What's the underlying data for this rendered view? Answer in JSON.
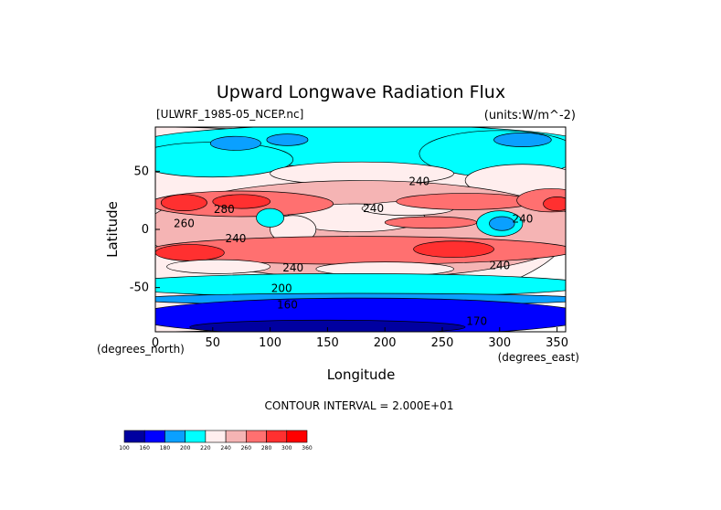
{
  "chart_data": {
    "type": "heatmap",
    "title": "Upward Longwave Radiation Flux",
    "file_label": "[ULWRF_1985-05_NCEP.nc]",
    "units_label": "(units:W/m^-2)",
    "xlabel": "Longitude",
    "ylabel": "Latitude",
    "x_unit_label": "(degrees_east)",
    "y_unit_label": "(degrees_north)",
    "xlim": [
      0,
      357.5
    ],
    "ylim": [
      -88,
      88
    ],
    "x_ticks": [
      "0",
      "50",
      "100",
      "150",
      "200",
      "250",
      "300",
      "350"
    ],
    "x_tick_values": [
      0,
      50,
      100,
      150,
      200,
      250,
      300,
      350
    ],
    "y_ticks": [
      "50",
      "0",
      "-50"
    ],
    "y_tick_values": [
      50,
      0,
      -50
    ],
    "contour_interval_text": "CONTOUR INTERVAL = 2.000E+01",
    "contour_labels": [
      {
        "text": "240",
        "lon": 230,
        "lat": 38
      },
      {
        "text": "240",
        "lon": 190,
        "lat": 15
      },
      {
        "text": "240",
        "lon": 70,
        "lat": -11
      },
      {
        "text": "240",
        "lon": 120,
        "lat": -36
      },
      {
        "text": "240",
        "lon": 300,
        "lat": -34
      },
      {
        "text": "240",
        "lon": 320,
        "lat": 6
      },
      {
        "text": "200",
        "lon": 110,
        "lat": -54
      },
      {
        "text": "160",
        "lon": 115,
        "lat": -68
      },
      {
        "text": "280",
        "lon": 60,
        "lat": 14
      },
      {
        "text": "260",
        "lon": 25,
        "lat": 2
      },
      {
        "text": "170",
        "lon": 280,
        "lat": -82
      }
    ],
    "colorbar": {
      "levels": [
        "100",
        "160",
        "180",
        "200",
        "220",
        "240",
        "260",
        "280",
        "300",
        "360"
      ],
      "colors": [
        "#0000a0",
        "#0000ff",
        "#0aa0ff",
        "#00ffff",
        "#ffeeee",
        "#f5b4b4",
        "#ff7070",
        "#ff3030",
        "#ff0000"
      ]
    },
    "regions": [
      {
        "value": 230,
        "lon": 0,
        "lat": 0,
        "lon_r": 360,
        "lat_r": 88
      },
      {
        "value": 210,
        "lon": 180,
        "lat": 72,
        "lon_r": 200,
        "lat_r": 18
      },
      {
        "value": 210,
        "lon": 50,
        "lat": 60,
        "lon_r": 70,
        "lat_r": 15
      },
      {
        "value": 210,
        "lon": 300,
        "lat": 65,
        "lon_r": 70,
        "lat_r": 20
      },
      {
        "value": 190,
        "lon": 70,
        "lat": 74,
        "lon_r": 22,
        "lat_r": 6
      },
      {
        "value": 190,
        "lon": 115,
        "lat": 77,
        "lon_r": 18,
        "lat_r": 5
      },
      {
        "value": 190,
        "lon": 320,
        "lat": 77,
        "lon_r": 25,
        "lat_r": 6
      },
      {
        "value": 230,
        "lon": 180,
        "lat": 48,
        "lon_r": 80,
        "lat_r": 10
      },
      {
        "value": 230,
        "lon": 320,
        "lat": 42,
        "lon_r": 50,
        "lat_r": 14
      },
      {
        "value": 250,
        "lon": 180,
        "lat": 0,
        "lon_r": 190,
        "lat_r": 42
      },
      {
        "value": 230,
        "lon": 175,
        "lat": 10,
        "lon_r": 60,
        "lat_r": 12
      },
      {
        "value": 230,
        "lon": 220,
        "lat": 18,
        "lon_r": 40,
        "lat_r": 6
      },
      {
        "value": 230,
        "lon": 120,
        "lat": 0,
        "lon_r": 20,
        "lat_r": 12
      },
      {
        "value": 270,
        "lon": 75,
        "lat": 22,
        "lon_r": 80,
        "lat_r": 11
      },
      {
        "value": 270,
        "lon": 270,
        "lat": 24,
        "lon_r": 60,
        "lat_r": 7
      },
      {
        "value": 270,
        "lon": 345,
        "lat": 25,
        "lon_r": 30,
        "lat_r": 10
      },
      {
        "value": 290,
        "lon": 25,
        "lat": 23,
        "lon_r": 20,
        "lat_r": 7
      },
      {
        "value": 290,
        "lon": 75,
        "lat": 24,
        "lon_r": 25,
        "lat_r": 6
      },
      {
        "value": 290,
        "lon": 350,
        "lat": 22,
        "lon_r": 12,
        "lat_r": 6
      },
      {
        "value": 270,
        "lon": 240,
        "lat": 6,
        "lon_r": 40,
        "lat_r": 5
      },
      {
        "value": 270,
        "lon": 180,
        "lat": -18,
        "lon_r": 185,
        "lat_r": 12
      },
      {
        "value": 290,
        "lon": 30,
        "lat": -20,
        "lon_r": 30,
        "lat_r": 7
      },
      {
        "value": 290,
        "lon": 260,
        "lat": -17,
        "lon_r": 35,
        "lat_r": 7
      },
      {
        "value": 230,
        "lon": 55,
        "lat": -32,
        "lon_r": 45,
        "lat_r": 6
      },
      {
        "value": 230,
        "lon": 200,
        "lat": -34,
        "lon_r": 60,
        "lat_r": 6
      },
      {
        "value": 210,
        "lon": 300,
        "lat": 5,
        "lon_r": 20,
        "lat_r": 11
      },
      {
        "value": 190,
        "lon": 302,
        "lat": 5,
        "lon_r": 11,
        "lat_r": 6
      },
      {
        "value": 210,
        "lon": 100,
        "lat": 10,
        "lon_r": 12,
        "lat_r": 8
      },
      {
        "value": 210,
        "lon": 170,
        "lat": -48,
        "lon_r": 210,
        "lat_r": 10
      },
      {
        "value": 190,
        "lon": 180,
        "lat": -60,
        "lon_r": 200,
        "lat_r": 5
      },
      {
        "value": 170,
        "lon": 180,
        "lat": -75,
        "lon_r": 200,
        "lat_r": 16
      },
      {
        "value": 130,
        "lon": 150,
        "lat": -84,
        "lon_r": 120,
        "lat_r": 6
      }
    ]
  }
}
